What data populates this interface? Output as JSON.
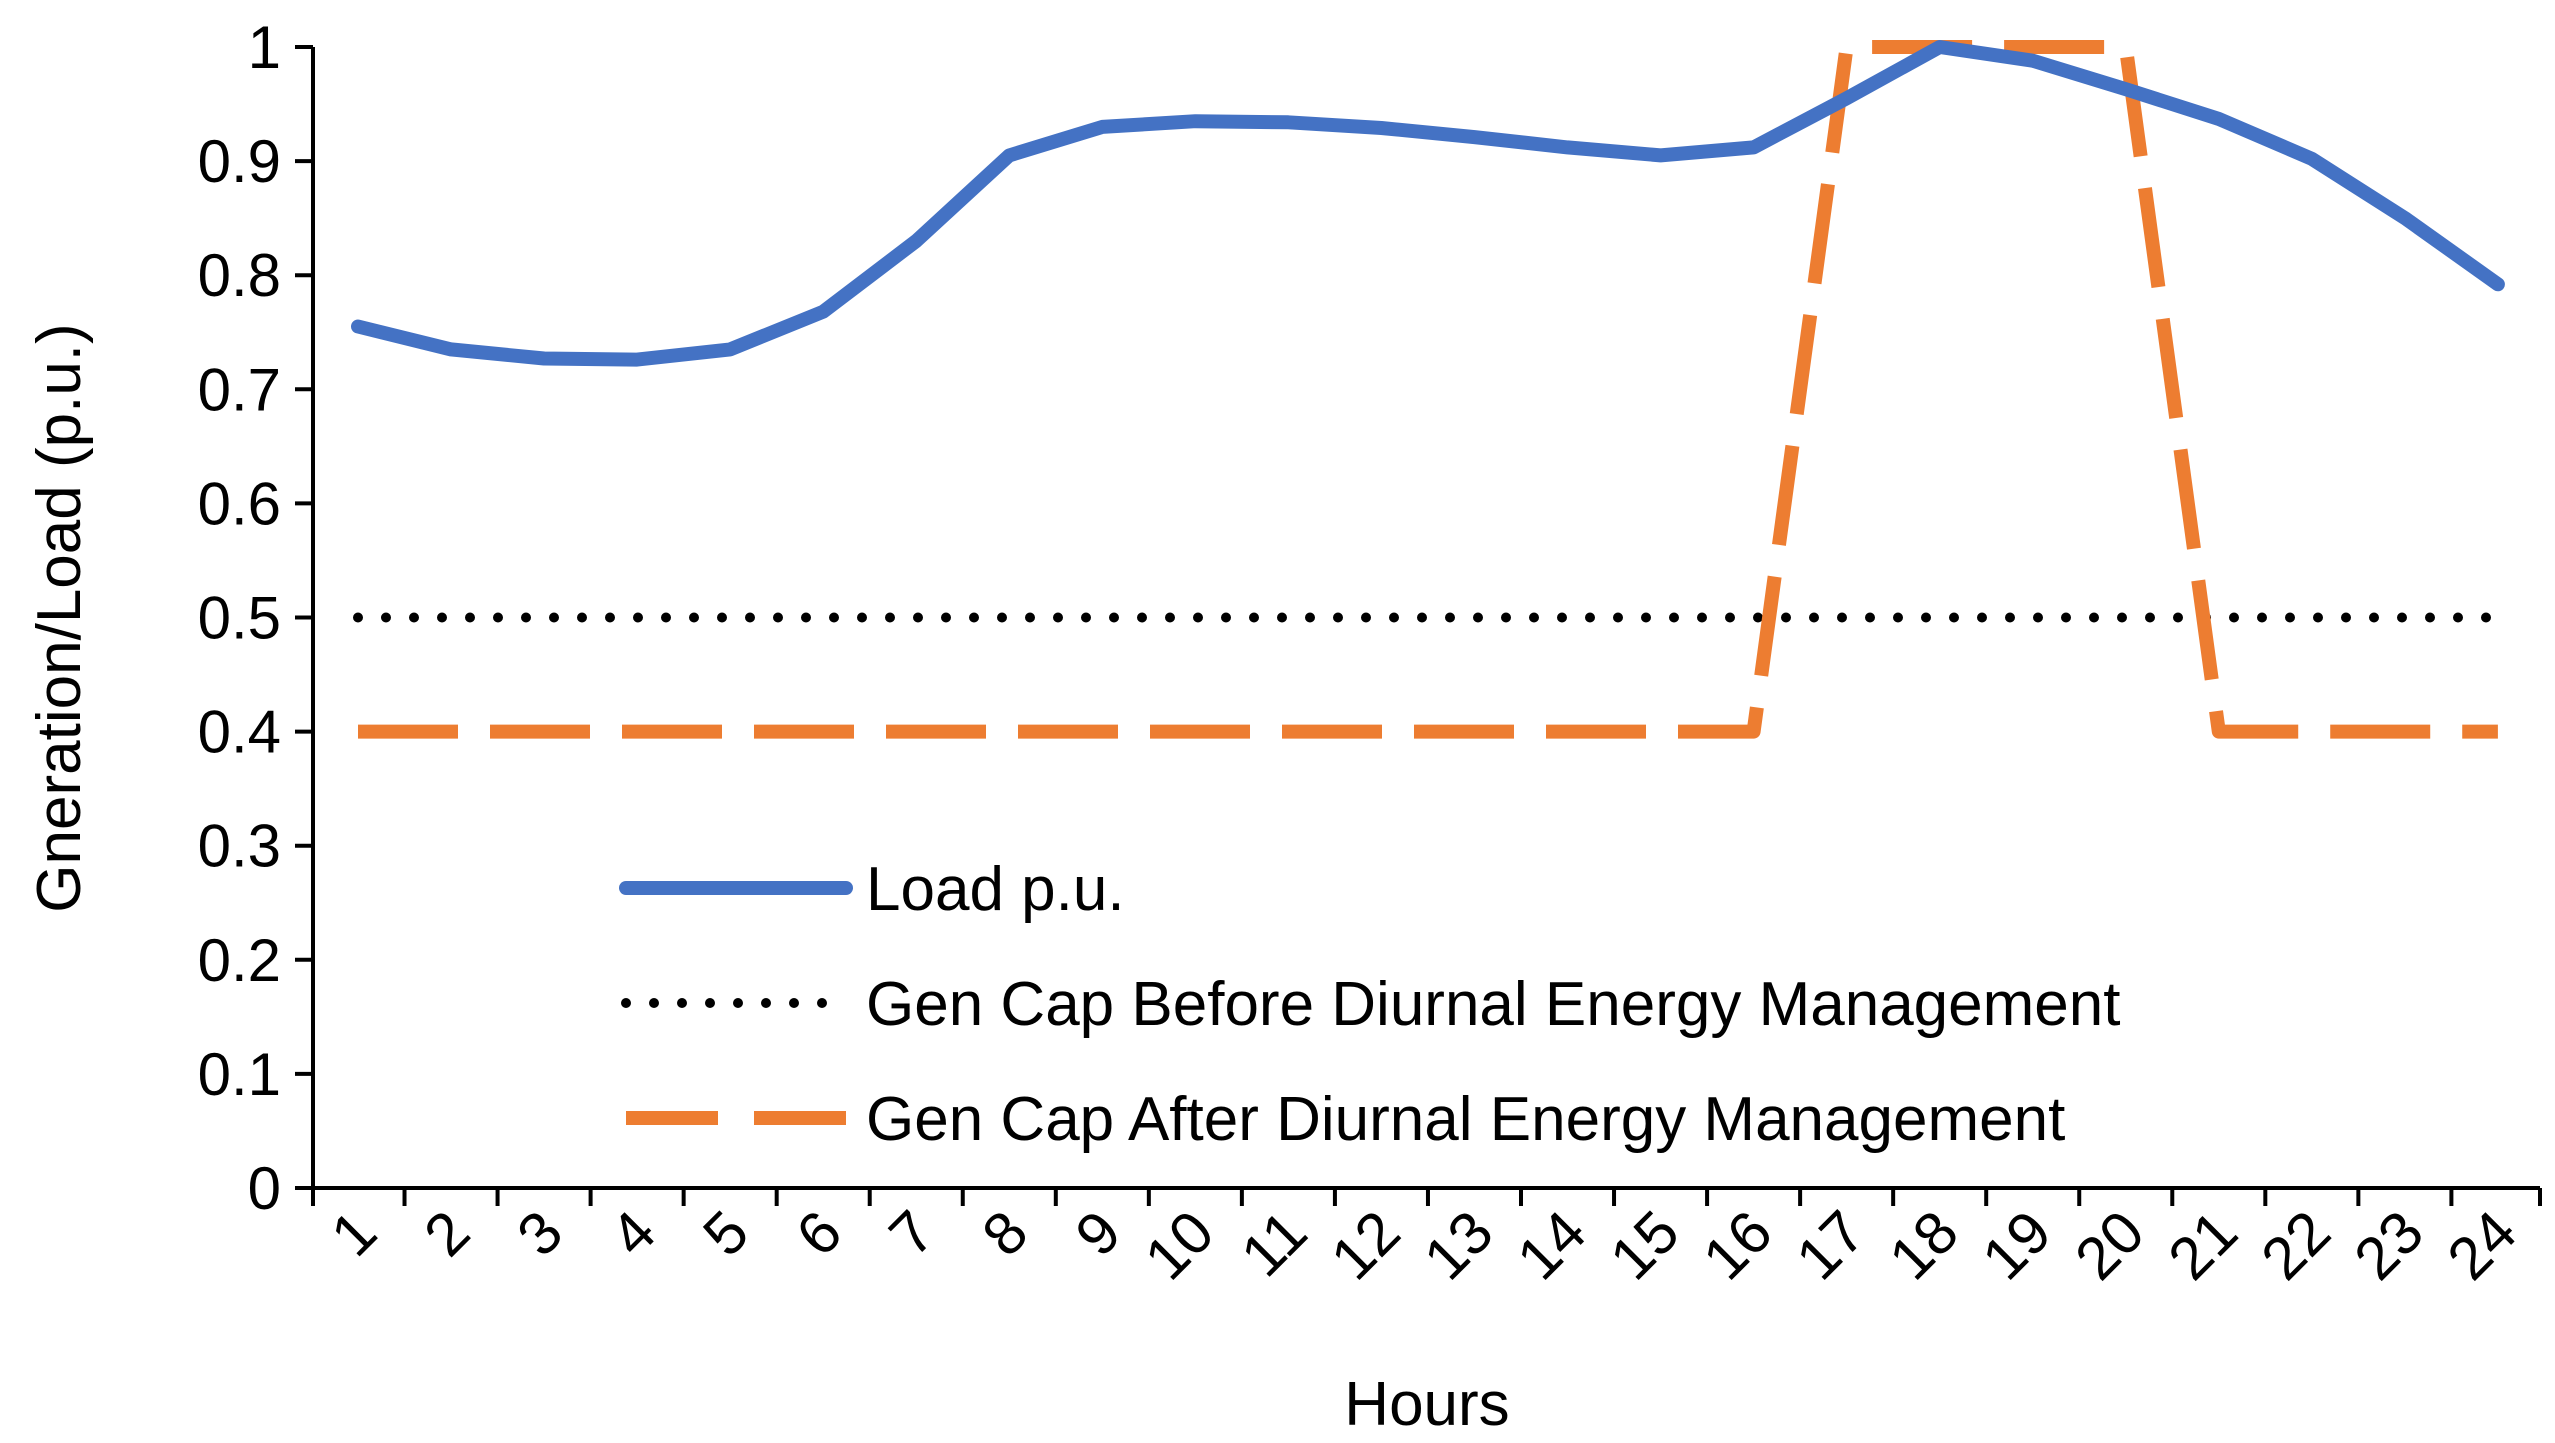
{
  "chart_data": {
    "type": "line",
    "title": "",
    "xlabel": "Hours",
    "ylabel": "Gneration/Load (p.u.)",
    "categories": [
      "1",
      "2",
      "3",
      "4",
      "5",
      "6",
      "7",
      "8",
      "9",
      "10",
      "11",
      "12",
      "13",
      "14",
      "15",
      "16",
      "17",
      "18",
      "19",
      "20",
      "21",
      "22",
      "23",
      "24"
    ],
    "ylim": [
      0,
      1
    ],
    "yticks": [
      "0",
      "0.1",
      "0.2",
      "0.3",
      "0.4",
      "0.5",
      "0.6",
      "0.7",
      "0.8",
      "0.9",
      "1"
    ],
    "grid": false,
    "legend_position": "bottom-center",
    "series": [
      {
        "name": "Load p.u.",
        "style": "solid",
        "color": "#4472C4",
        "values": [
          0.755,
          0.735,
          0.727,
          0.726,
          0.735,
          0.768,
          0.83,
          0.905,
          0.93,
          0.935,
          0.934,
          0.929,
          0.921,
          0.912,
          0.905,
          0.912,
          0.955,
          1.0,
          0.988,
          0.963,
          0.937,
          0.902,
          0.85,
          0.792
        ]
      },
      {
        "name": "Gen Cap Before Diurnal Energy Management",
        "style": "dotted",
        "color": "#000000",
        "values": [
          0.5,
          0.5,
          0.5,
          0.5,
          0.5,
          0.5,
          0.5,
          0.5,
          0.5,
          0.5,
          0.5,
          0.5,
          0.5,
          0.5,
          0.5,
          0.5,
          0.5,
          0.5,
          0.5,
          0.5,
          0.5,
          0.5,
          0.5,
          0.5
        ]
      },
      {
        "name": "Gen Cap After Diurnal Energy Management",
        "style": "dashed",
        "color": "#ED7D31",
        "values": [
          0.4,
          0.4,
          0.4,
          0.4,
          0.4,
          0.4,
          0.4,
          0.4,
          0.4,
          0.4,
          0.4,
          0.4,
          0.4,
          0.4,
          0.4,
          0.4,
          1.0,
          1.0,
          1.0,
          1.0,
          0.4,
          0.4,
          0.4,
          0.4
        ]
      }
    ]
  }
}
